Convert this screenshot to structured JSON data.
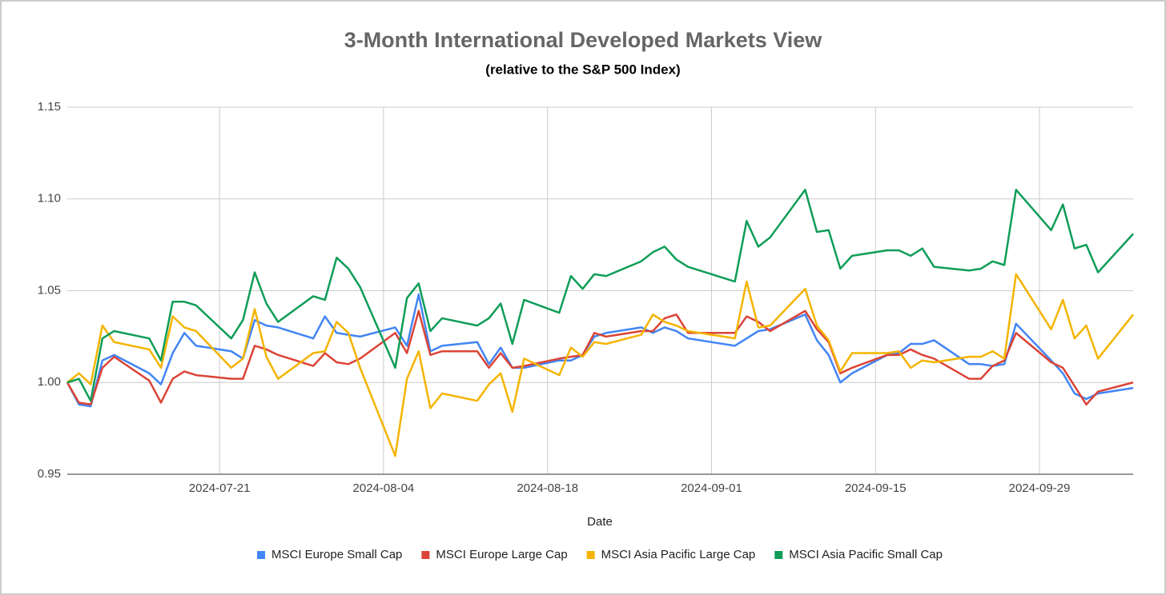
{
  "chart_data": {
    "type": "line",
    "title": "3-Month International Developed Markets View",
    "subtitle": "(relative to the S&P 500 Index)",
    "x_label": "Date",
    "grid": true,
    "legend": "bottom",
    "x": [
      "2024-07-08",
      "2024-07-09",
      "2024-07-10",
      "2024-07-11",
      "2024-07-12",
      "2024-07-15",
      "2024-07-16",
      "2024-07-17",
      "2024-07-18",
      "2024-07-19",
      "2024-07-22",
      "2024-07-23",
      "2024-07-24",
      "2024-07-25",
      "2024-07-26",
      "2024-07-29",
      "2024-07-30",
      "2024-07-31",
      "2024-08-01",
      "2024-08-02",
      "2024-08-05",
      "2024-08-06",
      "2024-08-07",
      "2024-08-08",
      "2024-08-09",
      "2024-08-12",
      "2024-08-13",
      "2024-08-14",
      "2024-08-15",
      "2024-08-16",
      "2024-08-19",
      "2024-08-20",
      "2024-08-21",
      "2024-08-22",
      "2024-08-23",
      "2024-08-26",
      "2024-08-27",
      "2024-08-28",
      "2024-08-29",
      "2024-08-30",
      "2024-09-03",
      "2024-09-04",
      "2024-09-05",
      "2024-09-06",
      "2024-09-09",
      "2024-09-10",
      "2024-09-11",
      "2024-09-12",
      "2024-09-13",
      "2024-09-16",
      "2024-09-17",
      "2024-09-18",
      "2024-09-19",
      "2024-09-20",
      "2024-09-23",
      "2024-09-24",
      "2024-09-25",
      "2024-09-26",
      "2024-09-27",
      "2024-09-30",
      "2024-10-01",
      "2024-10-02",
      "2024-10-03",
      "2024-10-04",
      "2024-10-07"
    ],
    "xlim": [
      "2024-07-08",
      "2024-10-07"
    ],
    "xticks": [
      "2024-07-21",
      "2024-08-04",
      "2024-08-18",
      "2024-09-01",
      "2024-09-15",
      "2024-09-29"
    ],
    "ylim": [
      0.95,
      1.15
    ],
    "yticks": [
      1.15,
      {
        "value": 1.1,
        "label": "1.10"
      },
      1.05,
      {
        "value": 1,
        "label": "1.00"
      },
      0.95
    ],
    "series": [
      {
        "name": "MSCI Europe Small Cap",
        "color": "#4285f4",
        "values": [
          1.0,
          0.988,
          0.987,
          1.012,
          1.015,
          1.005,
          0.999,
          1.016,
          1.027,
          1.02,
          1.017,
          1.013,
          1.034,
          1.031,
          1.03,
          1.024,
          1.036,
          1.027,
          1.026,
          1.025,
          1.03,
          1.02,
          1.048,
          1.017,
          1.02,
          1.022,
          1.01,
          1.019,
          1.008,
          1.008,
          1.012,
          1.012,
          1.015,
          1.025,
          1.027,
          1.03,
          1.027,
          1.03,
          1.028,
          1.024,
          1.02,
          1.024,
          1.028,
          1.029,
          1.037,
          1.023,
          1.015,
          1.0,
          1.005,
          1.015,
          1.016,
          1.021,
          1.021,
          1.023,
          1.01,
          1.01,
          1.009,
          1.01,
          1.032,
          1.012,
          1.005,
          0.994,
          0.991,
          0.994,
          0.997
        ]
      },
      {
        "name": "MSCI Europe Large Cap",
        "color": "#db4437",
        "values": [
          1.0,
          0.989,
          0.988,
          1.008,
          1.014,
          1.001,
          0.989,
          1.002,
          1.006,
          1.004,
          1.002,
          1.002,
          1.02,
          1.018,
          1.015,
          1.009,
          1.016,
          1.011,
          1.01,
          1.013,
          1.027,
          1.016,
          1.039,
          1.015,
          1.017,
          1.017,
          1.008,
          1.016,
          1.008,
          1.009,
          1.013,
          1.014,
          1.015,
          1.027,
          1.025,
          1.028,
          1.028,
          1.035,
          1.037,
          1.027,
          1.027,
          1.036,
          1.033,
          1.028,
          1.039,
          1.029,
          1.022,
          1.005,
          1.008,
          1.015,
          1.015,
          1.018,
          1.015,
          1.013,
          1.002,
          1.002,
          1.009,
          1.012,
          1.027,
          1.011,
          1.008,
          0.998,
          0.988,
          0.995,
          1.0
        ]
      },
      {
        "name": "MSCI Asia Pacific Large Cap",
        "color": "#f4b400",
        "values": [
          1.0,
          1.005,
          0.999,
          1.031,
          1.022,
          1.018,
          1.008,
          1.036,
          1.03,
          1.028,
          1.008,
          1.013,
          1.04,
          1.014,
          1.002,
          1.016,
          1.017,
          1.033,
          1.027,
          1.008,
          0.96,
          1.002,
          1.017,
          0.986,
          0.994,
          0.99,
          0.999,
          1.005,
          0.984,
          1.013,
          1.004,
          1.019,
          1.014,
          1.022,
          1.021,
          1.026,
          1.037,
          1.033,
          1.031,
          1.028,
          1.024,
          1.055,
          1.03,
          1.031,
          1.051,
          1.031,
          1.023,
          1.006,
          1.016,
          1.016,
          1.017,
          1.008,
          1.012,
          1.011,
          1.014,
          1.014,
          1.017,
          1.013,
          1.059,
          1.029,
          1.045,
          1.024,
          1.031,
          1.013,
          1.037
        ]
      },
      {
        "name": "MSCI Asia Pacific Small Cap",
        "color": "#0f9d58",
        "values": [
          1.0,
          1.002,
          0.99,
          1.024,
          1.028,
          1.024,
          1.012,
          1.044,
          1.044,
          1.042,
          1.024,
          1.034,
          1.06,
          1.043,
          1.033,
          1.047,
          1.045,
          1.068,
          1.062,
          1.052,
          1.008,
          1.046,
          1.054,
          1.028,
          1.035,
          1.031,
          1.035,
          1.043,
          1.021,
          1.045,
          1.038,
          1.058,
          1.051,
          1.059,
          1.058,
          1.066,
          1.071,
          1.074,
          1.067,
          1.063,
          1.055,
          1.088,
          1.074,
          1.079,
          1.105,
          1.082,
          1.083,
          1.062,
          1.069,
          1.072,
          1.072,
          1.069,
          1.073,
          1.063,
          1.061,
          1.062,
          1.066,
          1.064,
          1.105,
          1.083,
          1.097,
          1.073,
          1.075,
          1.06,
          1.081
        ]
      }
    ]
  }
}
